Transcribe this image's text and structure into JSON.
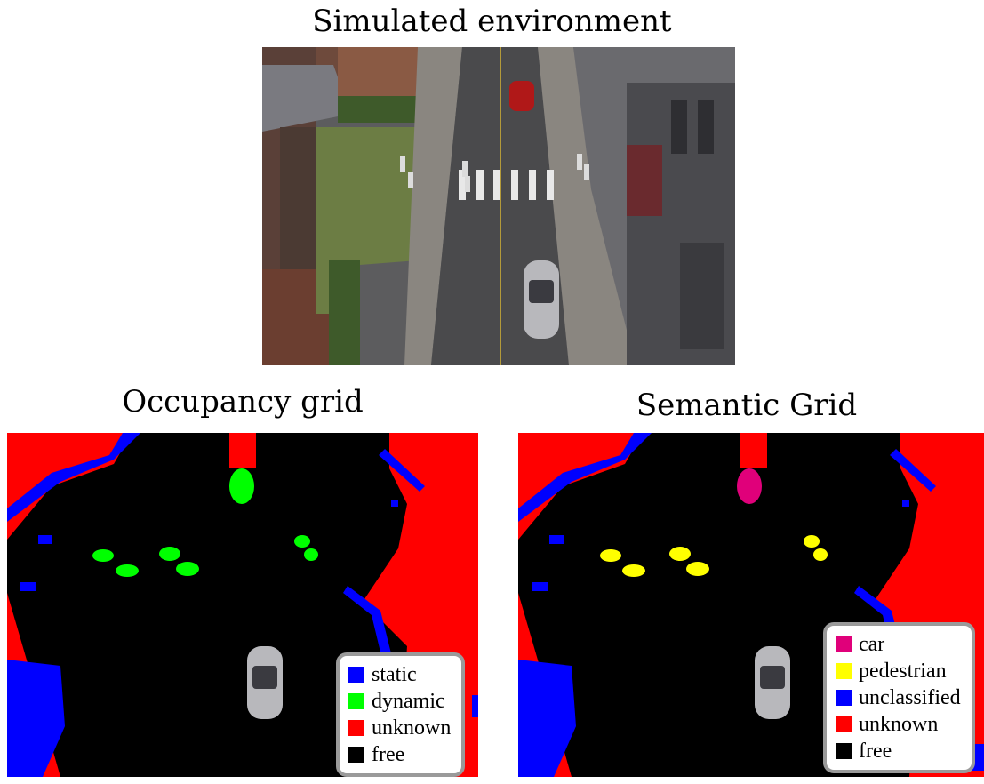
{
  "titles": {
    "top": "Simulated environment",
    "left": "Occupancy grid",
    "right": "Semantic Grid"
  },
  "legends": {
    "occupancy": [
      {
        "label": "static",
        "color": "#0000ff"
      },
      {
        "label": "dynamic",
        "color": "#00ff00"
      },
      {
        "label": "unknown",
        "color": "#ff0000"
      },
      {
        "label": "free",
        "color": "#000000"
      }
    ],
    "semantic": [
      {
        "label": "car",
        "color": "#e0007a"
      },
      {
        "label": "pedestrian",
        "color": "#ffff00"
      },
      {
        "label": "unclassified",
        "color": "#0000ff"
      },
      {
        "label": "unknown",
        "color": "#ff0000"
      },
      {
        "label": "free",
        "color": "#000000"
      }
    ]
  },
  "colors": {
    "static": "#0000ff",
    "dynamic": "#00ff00",
    "car": "#e0007a",
    "pedestrian": "#ffff00",
    "unknown": "#ff0000",
    "free": "#000000"
  }
}
